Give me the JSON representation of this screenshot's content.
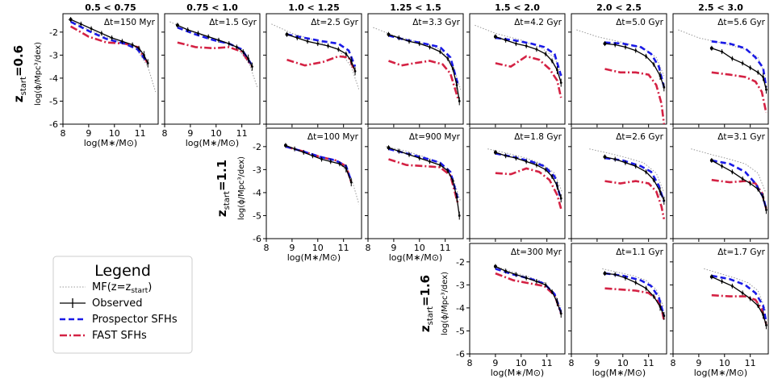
{
  "chart_data": {
    "type": "line",
    "mass_bins": [
      "0.5 < 0.75",
      "0.75 < 1.0",
      "1.0 < 1.25",
      "1.25 < 1.5",
      "1.5 < 2.0",
      "2.0 < 2.5",
      "2.5 < 3.0"
    ],
    "xlabel": "log(M∗/M⊙)",
    "ylabel": "log(ϕ/Mpc³/dex)",
    "xlim": [
      8,
      11.7
    ],
    "ylim": [
      -6,
      -1.2
    ],
    "xticks": [
      8,
      9,
      10,
      11
    ],
    "yticks": [
      -6,
      -5,
      -4,
      -3,
      -2
    ],
    "rows": [
      {
        "label_main": "z",
        "label_sub": "start",
        "label_tail": "=0.6",
        "start_col": 0
      },
      {
        "label_main": "z",
        "label_sub": "start",
        "label_tail": "=1.1",
        "start_col": 2
      },
      {
        "label_main": "z",
        "label_sub": "start",
        "label_tail": "=1.6",
        "start_col": 4
      }
    ],
    "panels": [
      {
        "row": 0,
        "col": 0,
        "dt": "Δt=150 Myr",
        "mfx": [
          8.2,
          9,
          10,
          10.8,
          11.3,
          11.6
        ],
        "mf": [
          -1.45,
          -1.9,
          -2.35,
          -2.65,
          -3.5,
          -4.6
        ],
        "ox": [
          8.3,
          8.7,
          9.1,
          9.5,
          9.9,
          10.3,
          10.7,
          10.95,
          11.15,
          11.3
        ],
        "oy": [
          -1.45,
          -1.65,
          -1.85,
          -2.05,
          -2.25,
          -2.4,
          -2.55,
          -2.7,
          -3.0,
          -3.35
        ],
        "px": [
          8.3,
          9,
          9.7,
          10.4,
          10.9,
          11.3
        ],
        "py": [
          -1.55,
          -1.95,
          -2.3,
          -2.5,
          -2.75,
          -3.35
        ],
        "fx": [
          8.3,
          9,
          9.7,
          10.4,
          10.9,
          11.3
        ],
        "fy": [
          -1.75,
          -2.2,
          -2.45,
          -2.5,
          -2.65,
          -3.35
        ]
      },
      {
        "row": 0,
        "col": 1,
        "dt": "Δt=1.5 Gyr",
        "mfx": [
          8.2,
          9,
          10,
          10.8,
          11.3,
          11.6
        ],
        "mf": [
          -1.55,
          -1.95,
          -2.35,
          -2.65,
          -3.4,
          -4.4
        ],
        "ox": [
          8.5,
          8.9,
          9.3,
          9.7,
          10.1,
          10.5,
          10.8,
          11.05,
          11.25,
          11.4
        ],
        "oy": [
          -1.7,
          -1.9,
          -2.05,
          -2.2,
          -2.35,
          -2.5,
          -2.65,
          -2.85,
          -3.15,
          -3.5
        ],
        "px": [
          8.5,
          9.2,
          9.9,
          10.5,
          11,
          11.4
        ],
        "py": [
          -1.8,
          -2.1,
          -2.35,
          -2.5,
          -2.75,
          -3.45
        ],
        "fx": [
          8.5,
          9.2,
          9.9,
          10.5,
          11,
          11.4
        ],
        "fy": [
          -2.45,
          -2.65,
          -2.7,
          -2.65,
          -2.85,
          -3.5
        ]
      },
      {
        "row": 0,
        "col": 2,
        "dt": "Δt=2.5 Gyr",
        "mfx": [
          8.2,
          9,
          10,
          10.8,
          11.3,
          11.6
        ],
        "mf": [
          -1.65,
          -2.05,
          -2.4,
          -2.75,
          -3.5,
          -4.5
        ],
        "ox": [
          8.8,
          9.2,
          9.6,
          10,
          10.4,
          10.8,
          11.1,
          11.3,
          11.45
        ],
        "oy": [
          -2.1,
          -2.25,
          -2.4,
          -2.5,
          -2.6,
          -2.75,
          -2.95,
          -3.25,
          -3.7
        ],
        "px": [
          8.8,
          9.5,
          10.2,
          10.8,
          11.2,
          11.45
        ],
        "py": [
          -2.1,
          -2.25,
          -2.4,
          -2.5,
          -2.8,
          -3.5
        ],
        "fx": [
          8.8,
          9.5,
          10.2,
          10.8,
          11.2,
          11.45
        ],
        "fy": [
          -3.2,
          -3.45,
          -3.3,
          -3.05,
          -3.1,
          -3.7
        ]
      },
      {
        "row": 0,
        "col": 3,
        "dt": "Δt=3.3 Gyr",
        "mfx": [
          8.2,
          9,
          10,
          10.8,
          11.3,
          11.6
        ],
        "mf": [
          -1.8,
          -2.15,
          -2.45,
          -2.75,
          -3.4,
          -4.5
        ],
        "ox": [
          8.8,
          9.2,
          9.6,
          10,
          10.4,
          10.8,
          11.1,
          11.3,
          11.45,
          11.55
        ],
        "oy": [
          -2.1,
          -2.25,
          -2.4,
          -2.5,
          -2.65,
          -2.85,
          -3.15,
          -3.6,
          -4.3,
          -5.0
        ],
        "px": [
          8.8,
          9.5,
          10.2,
          10.8,
          11.2,
          11.5
        ],
        "py": [
          -2.15,
          -2.35,
          -2.5,
          -2.65,
          -3.1,
          -4.3
        ],
        "fx": [
          8.8,
          9.3,
          9.8,
          10.4,
          10.9,
          11.2,
          11.5
        ],
        "fy": [
          -3.25,
          -3.45,
          -3.35,
          -3.25,
          -3.4,
          -3.8,
          -4.9
        ]
      },
      {
        "row": 0,
        "col": 4,
        "dt": "Δt=4.2 Gyr",
        "mfx": [
          8.2,
          9,
          10,
          10.8,
          11.3,
          11.6
        ],
        "mf": [
          -1.7,
          -2.05,
          -2.35,
          -2.7,
          -3.1,
          -3.9
        ],
        "ox": [
          9.0,
          9.4,
          9.8,
          10.2,
          10.6,
          10.95,
          11.2,
          11.4,
          11.55
        ],
        "oy": [
          -2.2,
          -2.35,
          -2.5,
          -2.6,
          -2.75,
          -2.95,
          -3.25,
          -3.65,
          -4.2
        ],
        "px": [
          9.0,
          9.7,
          10.4,
          10.9,
          11.3,
          11.55
        ],
        "py": [
          -2.25,
          -2.35,
          -2.5,
          -2.65,
          -2.95,
          -3.9
        ],
        "fx": [
          9.0,
          9.6,
          10.2,
          10.7,
          11.1,
          11.4,
          11.55
        ],
        "fy": [
          -3.35,
          -3.5,
          -3.05,
          -3.2,
          -3.6,
          -4.1,
          -4.85
        ]
      },
      {
        "row": 0,
        "col": 5,
        "dt": "Δt=5.0 Gyr",
        "mfx": [
          8.2,
          9,
          10,
          10.8,
          11.3,
          11.6
        ],
        "mf": [
          -1.9,
          -2.2,
          -2.45,
          -2.7,
          -3.1,
          -3.9
        ],
        "ox": [
          9.3,
          9.7,
          10.1,
          10.5,
          10.9,
          11.2,
          11.45,
          11.6
        ],
        "oy": [
          -2.5,
          -2.55,
          -2.65,
          -2.8,
          -3.05,
          -3.4,
          -3.9,
          -4.4
        ],
        "px": [
          9.3,
          10,
          10.7,
          11.1,
          11.4,
          11.6
        ],
        "py": [
          -2.45,
          -2.5,
          -2.65,
          -2.95,
          -3.5,
          -4.4
        ],
        "fx": [
          9.3,
          9.9,
          10.5,
          11.0,
          11.3,
          11.5,
          11.6
        ],
        "fy": [
          -3.6,
          -3.75,
          -3.75,
          -3.85,
          -4.3,
          -5.1,
          -6.0
        ]
      },
      {
        "row": 0,
        "col": 6,
        "dt": "Δt=5.6 Gyr",
        "mfx": [
          8.2,
          9,
          10,
          10.8,
          11.3,
          11.6
        ],
        "mf": [
          -1.9,
          -2.25,
          -2.5,
          -2.75,
          -3.1,
          -3.9
        ],
        "ox": [
          9.5,
          9.9,
          10.3,
          10.7,
          11.0,
          11.3,
          11.5,
          11.62
        ],
        "oy": [
          -2.7,
          -2.85,
          -3.15,
          -3.35,
          -3.55,
          -3.75,
          -3.95,
          -4.5
        ],
        "px": [
          9.5,
          10.2,
          10.8,
          11.2,
          11.5,
          11.62
        ],
        "py": [
          -2.4,
          -2.5,
          -2.7,
          -3.1,
          -3.55,
          -4.4
        ],
        "fx": [
          9.5,
          10.2,
          10.8,
          11.2,
          11.45,
          11.62
        ],
        "fy": [
          -3.75,
          -3.85,
          -3.95,
          -4.15,
          -4.6,
          -5.5
        ]
      },
      {
        "row": 1,
        "col": 2,
        "dt": "Δt=100 Myr",
        "mfx": [
          8.7,
          9.5,
          10.2,
          10.8,
          11.3,
          11.6
        ],
        "mf": [
          -1.95,
          -2.25,
          -2.5,
          -2.65,
          -3.35,
          -4.5
        ],
        "ox": [
          8.75,
          9.1,
          9.45,
          9.8,
          10.15,
          10.5,
          10.85,
          11.1,
          11.3
        ],
        "oy": [
          -1.95,
          -2.1,
          -2.25,
          -2.4,
          -2.55,
          -2.65,
          -2.75,
          -2.95,
          -3.55
        ],
        "px": [
          8.75,
          9.4,
          10.1,
          10.7,
          11.1,
          11.3
        ],
        "py": [
          -2.0,
          -2.2,
          -2.45,
          -2.6,
          -2.85,
          -3.5
        ],
        "fx": [
          8.75,
          9.4,
          10.1,
          10.7,
          11.1,
          11.3
        ],
        "fy": [
          -2.0,
          -2.2,
          -2.45,
          -2.6,
          -2.85,
          -3.55
        ]
      },
      {
        "row": 1,
        "col": 3,
        "dt": "Δt=900 Myr",
        "mfx": [
          8.7,
          9.5,
          10.2,
          10.8,
          11.3,
          11.6
        ],
        "mf": [
          -2.0,
          -2.2,
          -2.45,
          -2.7,
          -3.35,
          -4.4
        ],
        "ox": [
          8.8,
          9.2,
          9.6,
          10,
          10.4,
          10.8,
          11.1,
          11.3,
          11.45,
          11.55
        ],
        "oy": [
          -2.05,
          -2.2,
          -2.35,
          -2.5,
          -2.65,
          -2.8,
          -3.05,
          -3.5,
          -4.2,
          -5.0
        ],
        "px": [
          8.8,
          9.5,
          10.2,
          10.8,
          11.2,
          11.5
        ],
        "py": [
          -2.1,
          -2.3,
          -2.5,
          -2.7,
          -3.1,
          -4.3
        ],
        "fx": [
          8.8,
          9.5,
          10.2,
          10.8,
          11.2,
          11.5
        ],
        "fy": [
          -2.55,
          -2.8,
          -2.85,
          -2.9,
          -3.25,
          -4.5
        ]
      },
      {
        "row": 1,
        "col": 4,
        "dt": "Δt=1.8 Gyr",
        "mfx": [
          8.7,
          9.5,
          10.2,
          10.8,
          11.3,
          11.6
        ],
        "mf": [
          -2.1,
          -2.3,
          -2.5,
          -2.75,
          -3.15,
          -4.0
        ],
        "ox": [
          9.0,
          9.4,
          9.8,
          10.2,
          10.6,
          10.95,
          11.2,
          11.4,
          11.55
        ],
        "oy": [
          -2.25,
          -2.4,
          -2.5,
          -2.65,
          -2.8,
          -3.0,
          -3.3,
          -3.7,
          -4.25
        ],
        "px": [
          9.0,
          9.7,
          10.4,
          10.9,
          11.3,
          11.55
        ],
        "py": [
          -2.3,
          -2.45,
          -2.65,
          -2.85,
          -3.3,
          -4.3
        ],
        "fx": [
          9.0,
          9.6,
          10.2,
          10.7,
          11.1,
          11.4,
          11.55
        ],
        "fy": [
          -3.15,
          -3.2,
          -2.95,
          -3.1,
          -3.45,
          -4.1,
          -4.7
        ]
      },
      {
        "row": 1,
        "col": 5,
        "dt": "Δt=2.6 Gyr",
        "mfx": [
          8.7,
          9.5,
          10.2,
          10.8,
          11.3,
          11.6
        ],
        "mf": [
          -2.1,
          -2.3,
          -2.5,
          -2.7,
          -3.15,
          -4.0
        ],
        "ox": [
          9.3,
          9.7,
          10.1,
          10.5,
          10.9,
          11.2,
          11.45,
          11.6
        ],
        "oy": [
          -2.45,
          -2.55,
          -2.7,
          -2.85,
          -3.1,
          -3.45,
          -3.95,
          -4.35
        ],
        "px": [
          9.3,
          10,
          10.7,
          11.1,
          11.4,
          11.6
        ],
        "py": [
          -2.5,
          -2.6,
          -2.85,
          -3.1,
          -3.7,
          -4.4
        ],
        "fx": [
          9.3,
          9.9,
          10.5,
          11.0,
          11.3,
          11.5,
          11.6
        ],
        "fy": [
          -3.5,
          -3.6,
          -3.5,
          -3.6,
          -3.95,
          -4.6,
          -5.15
        ]
      },
      {
        "row": 1,
        "col": 6,
        "dt": "Δt=3.1 Gyr",
        "mfx": [
          8.7,
          9.5,
          10.2,
          10.8,
          11.3,
          11.6
        ],
        "mf": [
          -2.1,
          -2.35,
          -2.55,
          -2.75,
          -3.15,
          -4.0
        ],
        "ox": [
          9.5,
          9.9,
          10.3,
          10.7,
          11.0,
          11.3,
          11.5,
          11.62
        ],
        "oy": [
          -2.6,
          -2.85,
          -3.1,
          -3.4,
          -3.6,
          -3.85,
          -4.2,
          -4.75
        ],
        "px": [
          9.5,
          10.2,
          10.8,
          11.2,
          11.5,
          11.62
        ],
        "py": [
          -2.6,
          -2.75,
          -3.1,
          -3.6,
          -4.2,
          -4.7
        ],
        "fx": [
          9.5,
          10.2,
          10.8,
          11.2,
          11.45,
          11.62
        ],
        "fy": [
          -3.45,
          -3.55,
          -3.5,
          -3.6,
          -4.0,
          -4.7
        ]
      },
      {
        "row": 2,
        "col": 4,
        "dt": "Δt=300 Myr",
        "mfx": [
          9.0,
          9.7,
          10.3,
          10.9,
          11.3,
          11.55
        ],
        "mf": [
          -2.2,
          -2.45,
          -2.65,
          -2.9,
          -3.4,
          -4.0
        ],
        "ox": [
          9.0,
          9.4,
          9.8,
          10.2,
          10.6,
          10.95,
          11.2,
          11.4,
          11.55
        ],
        "oy": [
          -2.2,
          -2.4,
          -2.55,
          -2.7,
          -2.85,
          -3.0,
          -3.3,
          -3.75,
          -4.25
        ],
        "px": [
          9.0,
          9.7,
          10.4,
          10.9,
          11.3,
          11.55
        ],
        "py": [
          -2.3,
          -2.55,
          -2.75,
          -2.95,
          -3.4,
          -4.2
        ],
        "fx": [
          9.0,
          9.7,
          10.4,
          10.9,
          11.3,
          11.55
        ],
        "fy": [
          -2.5,
          -2.8,
          -2.95,
          -3.05,
          -3.45,
          -4.25
        ]
      },
      {
        "row": 2,
        "col": 5,
        "dt": "Δt=1.1 Gyr",
        "mfx": [
          9.2,
          9.8,
          10.4,
          10.9,
          11.3,
          11.6
        ],
        "mf": [
          -2.3,
          -2.45,
          -2.6,
          -2.8,
          -3.2,
          -4.0
        ],
        "ox": [
          9.3,
          9.7,
          10.1,
          10.5,
          10.9,
          11.2,
          11.45,
          11.6
        ],
        "oy": [
          -2.5,
          -2.55,
          -2.7,
          -2.9,
          -3.15,
          -3.5,
          -3.95,
          -4.35
        ],
        "px": [
          9.3,
          10,
          10.7,
          11.1,
          11.4,
          11.6
        ],
        "py": [
          -2.5,
          -2.6,
          -2.8,
          -3.05,
          -3.55,
          -4.35
        ],
        "fx": [
          9.3,
          9.9,
          10.5,
          11.0,
          11.3,
          11.5,
          11.6
        ],
        "fy": [
          -3.15,
          -3.2,
          -3.25,
          -3.35,
          -3.6,
          -4.0,
          -4.55
        ]
      },
      {
        "row": 2,
        "col": 6,
        "dt": "Δt=1.7 Gyr",
        "mfx": [
          9.2,
          9.8,
          10.4,
          10.9,
          11.3,
          11.6
        ],
        "mf": [
          -2.3,
          -2.5,
          -2.7,
          -2.9,
          -3.25,
          -4.1
        ],
        "ox": [
          9.5,
          9.9,
          10.3,
          10.7,
          11.0,
          11.3,
          11.5,
          11.62
        ],
        "oy": [
          -2.65,
          -2.85,
          -3.05,
          -3.35,
          -3.6,
          -3.9,
          -4.3,
          -4.75
        ],
        "px": [
          9.5,
          10.2,
          10.8,
          11.2,
          11.5,
          11.62
        ],
        "py": [
          -2.6,
          -2.75,
          -3.0,
          -3.35,
          -3.9,
          -4.6
        ],
        "fx": [
          9.5,
          10.2,
          10.8,
          11.2,
          11.45,
          11.62
        ],
        "fy": [
          -3.45,
          -3.5,
          -3.5,
          -3.65,
          -4.05,
          -4.7
        ]
      }
    ]
  },
  "legend": {
    "title": "Legend",
    "items": [
      {
        "key": "mf",
        "main": "MF(z=z",
        "sub": "start",
        "tail": ")",
        "color": "#999999"
      },
      {
        "key": "obs",
        "main": "Observed",
        "color": "#000000"
      },
      {
        "key": "prospector",
        "main": "Prospector SFHs",
        "color": "#1a1ae6"
      },
      {
        "key": "fast",
        "main": "FAST SFHs",
        "color": "#d42244"
      }
    ]
  }
}
